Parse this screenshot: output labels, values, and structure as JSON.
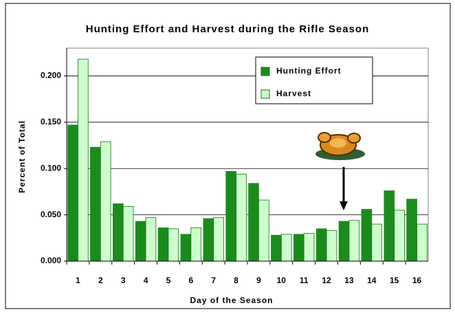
{
  "chart_data": {
    "type": "bar",
    "title": "Hunting Effort and Harvest during the Rifle Season",
    "x_label": "Day of the Season",
    "y_label": "Percent of Total",
    "categories": [
      "1",
      "2",
      "3",
      "4",
      "5",
      "6",
      "7",
      "8",
      "9",
      "10",
      "11",
      "12",
      "13",
      "14",
      "15",
      "16"
    ],
    "series": [
      {
        "name": "Hunting Effort",
        "color": "#1a8c1a",
        "values": [
          0.147,
          0.123,
          0.062,
          0.043,
          0.036,
          0.029,
          0.046,
          0.097,
          0.084,
          0.028,
          0.029,
          0.035,
          0.043,
          0.056,
          0.076,
          0.067
        ]
      },
      {
        "name": "Harvest",
        "color": "#ccffcc",
        "values": [
          0.218,
          0.129,
          0.059,
          0.047,
          0.035,
          0.036,
          0.047,
          0.094,
          0.066,
          0.029,
          0.03,
          0.033,
          0.044,
          0.04,
          0.055,
          0.04
        ]
      }
    ],
    "ylim": [
      0,
      0.23
    ],
    "yticks": [
      {
        "value": 0,
        "label": "0.000"
      },
      {
        "value": 0.05,
        "label": "0.050"
      },
      {
        "value": 0.1,
        "label": "0.100"
      },
      {
        "value": 0.15,
        "label": "0.150"
      },
      {
        "value": 0.2,
        "label": "0.200"
      }
    ],
    "grid": true
  }
}
